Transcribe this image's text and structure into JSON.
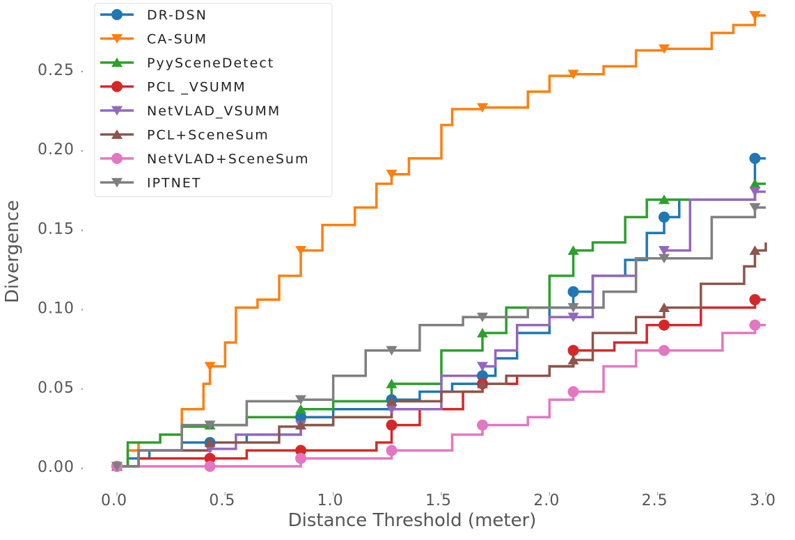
{
  "chart_data": {
    "type": "line",
    "step": true,
    "xlabel": "Distance Threshold (meter)",
    "ylabel": "Divergence",
    "xlim": [
      0.0,
      3.0
    ],
    "ylim": [
      0.0,
      0.285
    ],
    "xticks": [
      0.0,
      0.5,
      1.0,
      1.5,
      2.0,
      2.5,
      3.0
    ],
    "xtick_labels": [
      "0.0",
      "0.5",
      "1.0",
      "1.5",
      "2.0",
      "2.5",
      "3.0"
    ],
    "yticks": [
      0.0,
      0.05,
      0.1,
      0.15,
      0.2,
      0.25
    ],
    "ytick_labels": [
      "0.00",
      "0.05",
      "0.10",
      "0.15",
      "0.20",
      "0.25"
    ],
    "grid": false,
    "legend_position": "top-left",
    "marker_x": [
      0.0,
      0.43,
      0.85,
      1.27,
      1.69,
      2.11,
      2.53,
      2.95
    ],
    "series": [
      {
        "name": "DR-DSN",
        "color": "#1f77b4",
        "marker": "circle",
        "x": [
          0.0,
          0.05,
          0.15,
          0.3,
          0.43,
          0.6,
          0.85,
          1.0,
          1.27,
          1.4,
          1.55,
          1.69,
          1.75,
          1.85,
          2.0,
          2.11,
          2.2,
          2.35,
          2.45,
          2.53,
          2.6,
          2.85,
          2.95,
          3.0
        ],
        "y": [
          0.0,
          0.005,
          0.01,
          0.015,
          0.015,
          0.02,
          0.031,
          0.036,
          0.042,
          0.047,
          0.052,
          0.057,
          0.068,
          0.084,
          0.1,
          0.11,
          0.12,
          0.13,
          0.147,
          0.157,
          0.168,
          0.168,
          0.194,
          0.194
        ]
      },
      {
        "name": "CA-SUM",
        "color": "#ff7f0e",
        "marker": "triangle-down",
        "x": [
          0.0,
          0.05,
          0.1,
          0.2,
          0.3,
          0.4,
          0.43,
          0.5,
          0.55,
          0.65,
          0.75,
          0.85,
          0.95,
          1.1,
          1.2,
          1.27,
          1.35,
          1.5,
          1.55,
          1.69,
          1.9,
          2.0,
          2.11,
          2.25,
          2.4,
          2.53,
          2.75,
          2.85,
          2.95,
          3.0
        ],
        "y": [
          0.0,
          0.01,
          0.015,
          0.02,
          0.036,
          0.052,
          0.063,
          0.078,
          0.1,
          0.105,
          0.12,
          0.136,
          0.152,
          0.163,
          0.178,
          0.184,
          0.194,
          0.215,
          0.225,
          0.226,
          0.236,
          0.246,
          0.247,
          0.252,
          0.262,
          0.263,
          0.273,
          0.278,
          0.284,
          0.284
        ]
      },
      {
        "name": "PyySceneDetect",
        "color": "#2ca02c",
        "marker": "triangle-up",
        "x": [
          0.0,
          0.05,
          0.2,
          0.3,
          0.43,
          0.6,
          0.85,
          1.0,
          1.27,
          1.5,
          1.69,
          1.8,
          2.0,
          2.11,
          2.2,
          2.35,
          2.45,
          2.53,
          2.85,
          2.95,
          3.0
        ],
        "y": [
          0.0,
          0.015,
          0.02,
          0.025,
          0.026,
          0.031,
          0.036,
          0.041,
          0.052,
          0.073,
          0.084,
          0.1,
          0.12,
          0.136,
          0.141,
          0.157,
          0.168,
          0.168,
          0.168,
          0.178,
          0.178
        ]
      },
      {
        "name": "PCL _VSUMM",
        "color": "#d62728",
        "marker": "circle",
        "x": [
          0.0,
          0.1,
          0.43,
          0.6,
          0.85,
          1.0,
          1.2,
          1.27,
          1.4,
          1.6,
          1.69,
          1.85,
          2.0,
          2.11,
          2.3,
          2.45,
          2.53,
          2.7,
          2.95,
          3.0
        ],
        "y": [
          0.0,
          0.005,
          0.005,
          0.01,
          0.01,
          0.01,
          0.015,
          0.026,
          0.036,
          0.047,
          0.052,
          0.057,
          0.063,
          0.073,
          0.078,
          0.089,
          0.089,
          0.1,
          0.105,
          0.105
        ]
      },
      {
        "name": "NetVLAD_VSUMM",
        "color": "#9467bd",
        "marker": "triangle-down",
        "x": [
          0.0,
          0.1,
          0.43,
          0.55,
          0.85,
          1.0,
          1.27,
          1.5,
          1.69,
          1.75,
          1.85,
          2.0,
          2.11,
          2.2,
          2.4,
          2.53,
          2.65,
          2.95,
          3.0
        ],
        "y": [
          0.0,
          0.01,
          0.011,
          0.02,
          0.026,
          0.031,
          0.036,
          0.057,
          0.063,
          0.073,
          0.089,
          0.094,
          0.094,
          0.12,
          0.131,
          0.136,
          0.168,
          0.173,
          0.173
        ]
      },
      {
        "name": "PCL+SceneSum",
        "color": "#8c564b",
        "marker": "triangle-up",
        "x": [
          0.0,
          0.1,
          0.43,
          0.75,
          0.85,
          1.0,
          1.27,
          1.5,
          1.69,
          1.8,
          2.0,
          2.11,
          2.2,
          2.4,
          2.53,
          2.7,
          2.9,
          2.95,
          3.0
        ],
        "y": [
          0.0,
          0.01,
          0.015,
          0.025,
          0.026,
          0.031,
          0.041,
          0.047,
          0.052,
          0.057,
          0.063,
          0.067,
          0.084,
          0.094,
          0.1,
          0.115,
          0.126,
          0.136,
          0.141
        ]
      },
      {
        "name": "NetVLAD+SceneSum",
        "color": "#e377c2",
        "marker": "circle",
        "x": [
          0.0,
          0.43,
          0.85,
          1.27,
          1.55,
          1.69,
          1.9,
          2.0,
          2.11,
          2.25,
          2.4,
          2.53,
          2.8,
          2.95,
          3.0
        ],
        "y": [
          0.0,
          0.0,
          0.005,
          0.01,
          0.02,
          0.026,
          0.031,
          0.042,
          0.047,
          0.063,
          0.073,
          0.073,
          0.084,
          0.089,
          0.089
        ]
      },
      {
        "name": "IPTNET",
        "color": "#7f7f7f",
        "marker": "triangle-down",
        "x": [
          0.0,
          0.1,
          0.3,
          0.43,
          0.6,
          0.85,
          1.0,
          1.15,
          1.27,
          1.4,
          1.6,
          1.69,
          1.9,
          2.11,
          2.25,
          2.4,
          2.53,
          2.75,
          2.95,
          3.0
        ],
        "y": [
          0.0,
          0.01,
          0.026,
          0.026,
          0.041,
          0.042,
          0.057,
          0.073,
          0.073,
          0.089,
          0.094,
          0.094,
          0.1,
          0.1,
          0.11,
          0.131,
          0.131,
          0.157,
          0.163,
          0.163
        ]
      }
    ]
  }
}
